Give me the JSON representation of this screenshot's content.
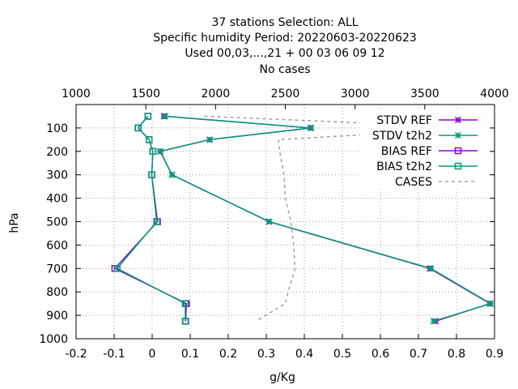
{
  "title_lines": [
    "37 stations Selection: ALL",
    "Specific humidity  Period: 20220603-20220623",
    "Used  00,03,...,21  + 00 03 06 09 12",
    "No cases"
  ],
  "chart_data": {
    "type": "line",
    "xlabel": "g/Kg",
    "ylabel": "hPa",
    "xlim": [
      -0.2,
      0.9
    ],
    "ylim": [
      1000,
      0
    ],
    "x2lim": [
      1000,
      4000
    ],
    "x_ticks": [
      "-0.2",
      "-0.1",
      "0",
      "0.1",
      "0.2",
      "0.3",
      "0.4",
      "0.5",
      "0.6",
      "0.7",
      "0.8",
      "0.9"
    ],
    "x2_ticks": [
      "1000",
      "1500",
      "2000",
      "2500",
      "3000",
      "3500",
      "4000"
    ],
    "y_ticks": [
      "100",
      "200",
      "300",
      "400",
      "500",
      "600",
      "700",
      "800",
      "900",
      "1000"
    ],
    "grid": true,
    "legend_position": "top-right",
    "series": [
      {
        "name": "STDV REF",
        "color": "#9400d3",
        "marker": "star",
        "dash": "solid",
        "points": [
          [
            0.031,
            50
          ],
          [
            0.416,
            100
          ],
          [
            0.151,
            150
          ],
          [
            0.021,
            200
          ],
          [
            0.052,
            300
          ],
          [
            0.307,
            500
          ],
          [
            0.73,
            700
          ],
          [
            0.888,
            850
          ],
          [
            0.745,
            925
          ]
        ]
      },
      {
        "name": "STDV t2h2",
        "color": "#009e73",
        "marker": "star",
        "dash": "solid",
        "points": [
          [
            0.034,
            50
          ],
          [
            0.418,
            100
          ],
          [
            0.152,
            150
          ],
          [
            0.022,
            200
          ],
          [
            0.052,
            300
          ],
          [
            0.308,
            500
          ],
          [
            0.733,
            700
          ],
          [
            0.89,
            850
          ],
          [
            0.74,
            925
          ]
        ]
      },
      {
        "name": "BIAS REF",
        "color": "#9400d3",
        "marker": "open-square",
        "dash": "solid",
        "points": [
          [
            -0.011,
            50
          ],
          [
            -0.037,
            100
          ],
          [
            -0.008,
            150
          ],
          [
            0.002,
            200
          ],
          [
            -0.001,
            300
          ],
          [
            0.014,
            500
          ],
          [
            -0.098,
            700
          ],
          [
            0.09,
            850
          ],
          [
            0.088,
            925
          ]
        ]
      },
      {
        "name": "BIAS t2h2",
        "color": "#009e73",
        "marker": "open-square",
        "dash": "solid",
        "points": [
          [
            -0.011,
            50
          ],
          [
            -0.037,
            100
          ],
          [
            -0.008,
            150
          ],
          [
            0.002,
            200
          ],
          [
            -0.001,
            300
          ],
          [
            0.012,
            500
          ],
          [
            -0.092,
            700
          ],
          [
            0.087,
            850
          ],
          [
            0.087,
            925
          ]
        ]
      },
      {
        "name": "CASES",
        "color": "#a0a0a0",
        "marker": "none",
        "dash": "dashed",
        "axis": "x2",
        "points": [
          [
            1920,
            50
          ],
          [
            3900,
            100
          ],
          [
            2450,
            150
          ],
          [
            2460,
            200
          ],
          [
            2490,
            300
          ],
          [
            2500,
            400
          ],
          [
            2540,
            500
          ],
          [
            2560,
            600
          ],
          [
            2570,
            700
          ],
          [
            2520,
            800
          ],
          [
            2500,
            850
          ],
          [
            2290,
            925
          ]
        ]
      }
    ]
  }
}
